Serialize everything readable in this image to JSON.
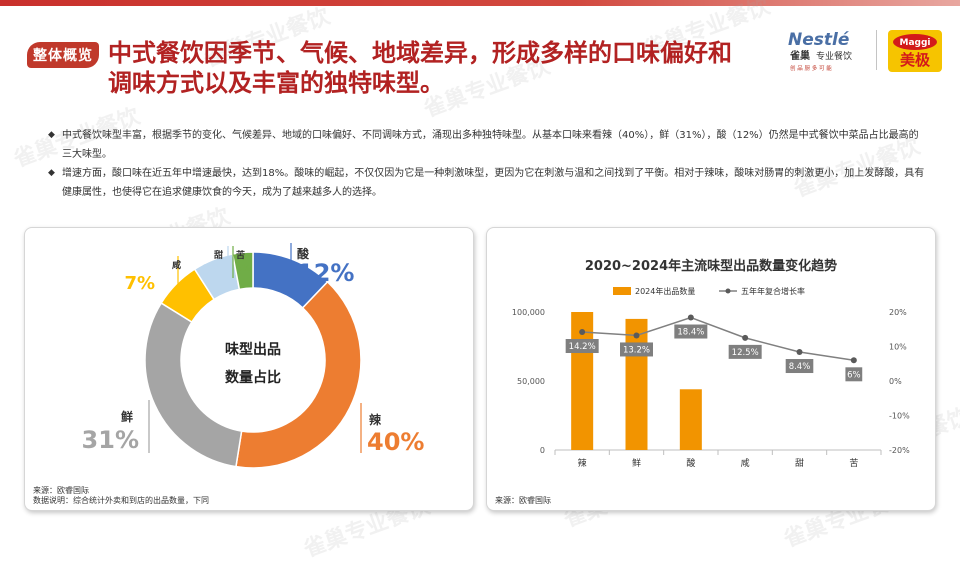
{
  "header": {
    "badge": "整体概览",
    "title": "中式餐饮因季节、气候、地域差异，形成多样的口味偏好和调味方式以及丰富的独特味型。"
  },
  "logos": {
    "nestle": "Nestlé",
    "nestle_sub": "雀巢",
    "nestle_tag": "专业餐饮",
    "nestle_tagline": "创 品 厨 多 可 能",
    "maggi_top": "Maggi",
    "maggi_bottom": "美极"
  },
  "bullets": [
    "中式餐饮味型丰富，根据季节的变化、气候差异、地域的口味偏好、不同调味方式，涌现出多种独特味型。从基本口味来看辣（40%），鲜（31%），酸（12%）仍然是中式餐饮中菜品占比最高的三大味型。",
    "增速方面，酸口味在近五年中增速最快，达到18%。酸味的崛起，不仅仅因为它是一种刺激味型，更因为它在刺激与温和之间找到了平衡。相对于辣味，酸味对肠胃的刺激更小，加上发酵酸，具有健康属性，也使得它在追求健康饮食的今天，成为了越来越多人的选择。"
  ],
  "bullet_marker": "◆",
  "watermark": "雀巢专业餐饮",
  "chart_data": [
    {
      "type": "pie",
      "center_label": [
        "味型出品",
        "数量占比"
      ],
      "categories": [
        "酸",
        "辣",
        "鲜",
        "咸",
        "甜",
        "苦"
      ],
      "values": [
        12,
        40,
        31,
        7,
        6,
        3
      ],
      "value_labels": [
        "12%",
        "40%",
        "31%",
        "7%",
        "6%",
        "3%"
      ],
      "colors": [
        "#4472c4",
        "#ed7d31",
        "#a5a5a5",
        "#ffc000",
        "#bdd7ee",
        "#70ad47"
      ],
      "source": "来源：欧睿国际",
      "note": "数据说明：综合统计外卖和到店的出品数量，下同"
    },
    {
      "type": "bar",
      "title": "2020~2024年主流味型出品数量变化趋势",
      "categories": [
        "辣",
        "鲜",
        "酸",
        "咸",
        "甜",
        "苦"
      ],
      "series": [
        {
          "name": "2024年出品数量",
          "type": "bar",
          "axis": "left",
          "color": "#f29400",
          "values": [
            100000,
            95000,
            44000,
            0,
            0,
            0
          ]
        },
        {
          "name": "五年年复合增长率",
          "type": "line",
          "axis": "right",
          "color": "#808080",
          "values": [
            14.2,
            13.2,
            18.4,
            12.5,
            8.4,
            6
          ],
          "value_labels": [
            "14.2%",
            "13.2%",
            "18.4%",
            "12.5%",
            "8.4%",
            "6%"
          ]
        }
      ],
      "left_axis": {
        "ylim": [
          0,
          100000
        ],
        "ticks": [
          "0",
          "50,000",
          "100,000"
        ],
        "tick_values": [
          0,
          50000,
          100000
        ]
      },
      "right_axis": {
        "ylim": [
          -20,
          20
        ],
        "ticks": [
          "20%",
          "10%",
          "0%",
          "-10%",
          "-20%"
        ],
        "tick_values": [
          20,
          10,
          0,
          -10,
          -20
        ]
      },
      "legend_position": "top",
      "grid": false,
      "source": "来源：欧睿国际"
    }
  ]
}
